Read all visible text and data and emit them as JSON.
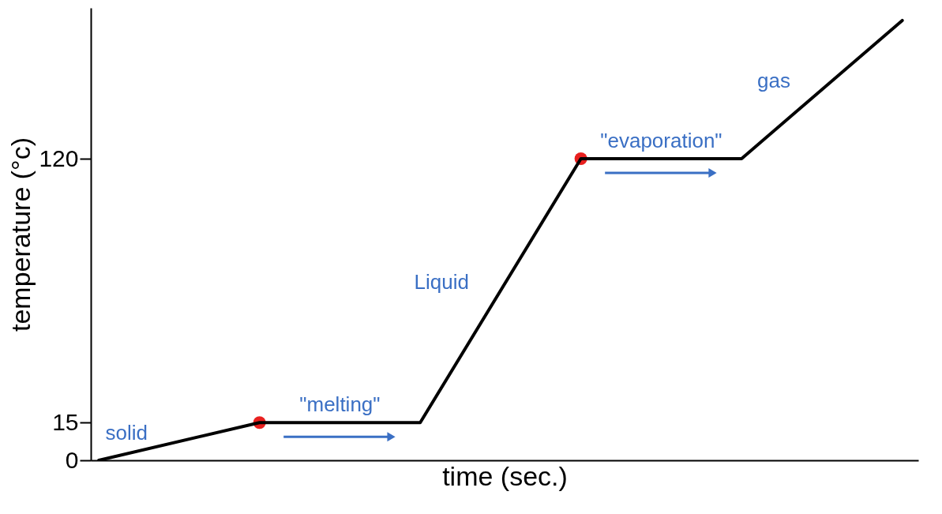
{
  "chart_data": {
    "type": "line",
    "xlabel": "time (sec.)",
    "ylabel": "temperature (°c)",
    "categories": [
      null,
      null,
      null,
      null,
      null,
      null
    ],
    "series": [
      {
        "type": "line",
        "color": "#000000",
        "marker": "none",
        "values": [
          0,
          15,
          15,
          120,
          120,
          175
        ]
      },
      {
        "type": "scatter",
        "color": "#e8201f",
        "marker": "circle",
        "values": [
          null,
          15,
          null,
          120,
          null,
          null
        ]
      }
    ],
    "ylim": [
      0,
      180
    ],
    "yticks": [
      0,
      15,
      120
    ],
    "tick_labels": "y",
    "grid": false,
    "annotations": [
      "solid",
      "\"melting\"",
      "Liquid",
      "\"evaporation\"",
      "gas"
    ]
  }
}
